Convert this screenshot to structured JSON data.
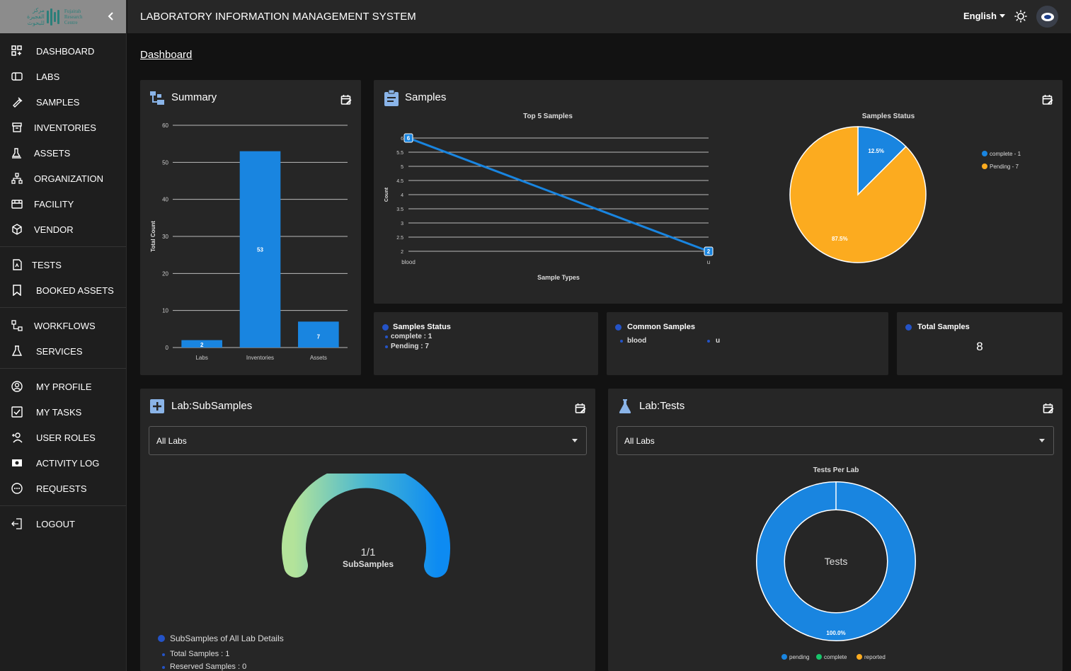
{
  "logo": {
    "ar_line1": "مركز",
    "ar_line2": "الفجيرة",
    "ar_line3": "للبحوث",
    "en_line1": "Fujairah",
    "en_line2": "Research",
    "en_line3": "Centre"
  },
  "header": {
    "title": "LABORATORY INFORMATION MANAGEMENT SYSTEM",
    "language": "English"
  },
  "breadcrumb": "Dashboard",
  "sidebar": {
    "groups": [
      [
        {
          "label": "DASHBOARD",
          "icon": "dashboard-icon"
        },
        {
          "label": "LABS",
          "icon": "labs-icon"
        },
        {
          "label": "SAMPLES",
          "icon": "samples-icon"
        },
        {
          "label": "INVENTORIES",
          "icon": "inventory-icon"
        },
        {
          "label": "ASSETS",
          "icon": "assets-icon"
        },
        {
          "label": "ORGANIZATION",
          "icon": "organization-icon"
        },
        {
          "label": "FACILITY",
          "icon": "facility-icon"
        },
        {
          "label": "VENDOR",
          "icon": "vendor-icon"
        }
      ],
      [
        {
          "label": "TESTS",
          "icon": "tests-icon"
        },
        {
          "label": "BOOKED ASSETS",
          "icon": "bookmark-icon"
        }
      ],
      [
        {
          "label": "WORKFLOWS",
          "icon": "workflow-icon"
        },
        {
          "label": "SERVICES",
          "icon": "flask-icon"
        }
      ],
      [
        {
          "label": "MY PROFILE",
          "icon": "profile-icon"
        },
        {
          "label": "MY TASKS",
          "icon": "tasks-icon"
        },
        {
          "label": "USER ROLES",
          "icon": "user-roles-icon"
        },
        {
          "label": "ACTIVITY LOG",
          "icon": "activity-log-icon"
        },
        {
          "label": "REQUESTS",
          "icon": "requests-icon"
        }
      ],
      [
        {
          "label": "LOGOUT",
          "icon": "logout-icon"
        }
      ]
    ]
  },
  "summary_card": {
    "title": "Summary"
  },
  "samples_card": {
    "title": "Samples"
  },
  "subsamples_card": {
    "title": "Lab:SubSamples",
    "select_value": "All Labs",
    "gauge_value": "1/1",
    "gauge_label": "SubSamples",
    "gauge_fraction": 1.0,
    "details_title": "SubSamples of All Lab Details",
    "details": [
      "Total Samples : 1",
      "Reserved Samples : 0"
    ]
  },
  "tests_card": {
    "title": "Lab:Tests",
    "select_value": "All Labs"
  },
  "stats": {
    "samples_status": {
      "title": "Samples Status",
      "lines": [
        "complete : 1",
        "Pending : 7"
      ]
    },
    "common_samples": {
      "title": "Common Samples",
      "items": [
        "blood",
        "u"
      ]
    },
    "total_samples": {
      "title": "Total Samples",
      "value": "8"
    }
  },
  "colors": {
    "accent_blue": "#1985e0",
    "orange": "#fcab1f",
    "green": "#17c46a",
    "dark_blue_dot": "#2453c7"
  },
  "chart_data": [
    {
      "type": "bar",
      "title": "",
      "categories": [
        "Labs",
        "Inventories",
        "Assets"
      ],
      "values": [
        2,
        53,
        7
      ],
      "ylabel": "Total Count",
      "xlabel": "",
      "ylim": [
        0,
        60
      ],
      "yticks": [
        0,
        10,
        20,
        30,
        40,
        50,
        60
      ],
      "data_labels": [
        "2",
        "53",
        "7"
      ]
    },
    {
      "type": "line",
      "title": "Top 5 Samples",
      "categories": [
        "blood",
        "u"
      ],
      "values": [
        6,
        2
      ],
      "xlabel": "Sample Types",
      "ylabel": "Count",
      "ylim": [
        2,
        6
      ],
      "yticks": [
        "2",
        "2.5",
        "3",
        "3.5",
        "4",
        "4.5",
        "5",
        "5.5",
        "6"
      ],
      "data_labels": [
        "6",
        "2"
      ]
    },
    {
      "type": "pie",
      "title": "Samples Status",
      "labels": [
        "complete",
        "Pending"
      ],
      "values": [
        1,
        7
      ],
      "legend": [
        "complete - 1",
        "Pending - 7"
      ],
      "data_labels": [
        "12.5%",
        "87.5%"
      ],
      "legend_position": "right"
    },
    {
      "type": "pie",
      "title": "Tests Per Lab",
      "center_label": "Tests",
      "labels": [
        "pending",
        "complete",
        "reported"
      ],
      "values": [
        1,
        0,
        0
      ],
      "data_labels": [
        "100.0%"
      ],
      "legend_position": "bottom"
    }
  ]
}
